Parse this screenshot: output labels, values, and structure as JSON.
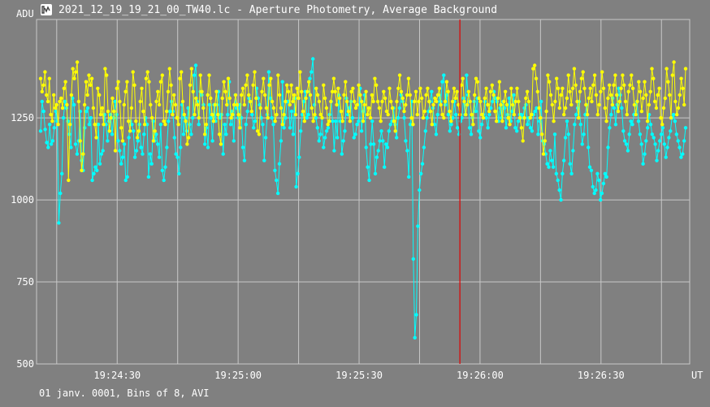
{
  "window": {
    "title": "2021_12_19_19_21_00_TW40.lc - Aperture Photometry, Average Background",
    "icon": "lightcurve-app-icon"
  },
  "footer": {
    "text": "01 janv. 0001, Bins of 8, AVI"
  },
  "colors": {
    "background": "#808080",
    "grid": "#c8c8c8",
    "series_cyan": "#00ffff",
    "series_yellow": "#ffff00",
    "marker_line": "#e00000",
    "text": "#ffffff"
  },
  "chart_data": {
    "type": "line",
    "title": "2021_12_19_19_21_00_TW40.lc - Aperture Photometry, Average Background",
    "xlabel": "UT",
    "ylabel": "ADU",
    "x_unit_label": "UT",
    "y_unit_label": "ADU",
    "xlim": [
      "19:24:10",
      "19:26:52"
    ],
    "ylim": [
      500,
      1550
    ],
    "x_ticks": [
      "19:24:30",
      "19:25:00",
      "19:25:30",
      "19:26:00",
      "19:26:30"
    ],
    "y_ticks": [
      500,
      750,
      1000,
      1250
    ],
    "grid": true,
    "marker_time": "19:25:55",
    "sample_interval_s": 0.3333,
    "series": [
      {
        "color": "#00ffff",
        "values": [
          1210,
          1300,
          1270,
          1215,
          1175,
          1160,
          1230,
          1170,
          1180,
          1220,
          1270,
          1240,
          930,
          1020,
          1080,
          1250,
          1300,
          1280,
          1240,
          1200,
          1160,
          1310,
          1290,
          1170,
          1140,
          1180,
          1270,
          1120,
          1090,
          1220,
          1270,
          1280,
          1230,
          1250,
          1060,
          1080,
          1100,
          1090,
          1230,
          1110,
          1140,
          1150,
          1260,
          1230,
          1180,
          1240,
          1260,
          1200,
          1250,
          1300,
          1260,
          1180,
          1150,
          1110,
          1130,
          1170,
          1060,
          1070,
          1190,
          1240,
          1230,
          1210,
          1130,
          1150,
          1180,
          1230,
          1160,
          1140,
          1200,
          1250,
          1230,
          1070,
          1140,
          1110,
          1240,
          1180,
          1200,
          1170,
          1130,
          1230,
          1090,
          1060,
          1100,
          1160,
          1240,
          1270,
          1300,
          1270,
          1190,
          1140,
          1130,
          1080,
          1160,
          1290,
          1200,
          1250,
          1210,
          1280,
          1230,
          1200,
          1250,
          1380,
          1410,
          1300,
          1230,
          1330,
          1320,
          1290,
          1170,
          1220,
          1160,
          1290,
          1250,
          1180,
          1290,
          1240,
          1290,
          1330,
          1250,
          1260,
          1140,
          1230,
          1200,
          1260,
          1360,
          1230,
          1270,
          1180,
          1320,
          1280,
          1250,
          1290,
          1250,
          1160,
          1120,
          1230,
          1270,
          1310,
          1300,
          1260,
          1220,
          1240,
          1340,
          1310,
          1290,
          1250,
          1230,
          1120,
          1190,
          1260,
          1390,
          1310,
          1250,
          1230,
          1090,
          1060,
          1020,
          1110,
          1180,
          1360,
          1220,
          1250,
          1300,
          1300,
          1220,
          1270,
          1200,
          1310,
          1040,
          1080,
          1130,
          1210,
          1260,
          1300,
          1330,
          1250,
          1260,
          1370,
          1390,
          1430,
          1290,
          1250,
          1220,
          1180,
          1200,
          1250,
          1160,
          1190,
          1210,
          1220,
          1260,
          1300,
          1240,
          1150,
          1240,
          1190,
          1320,
          1240,
          1140,
          1180,
          1210,
          1310,
          1260,
          1280,
          1300,
          1250,
          1190,
          1200,
          1230,
          1240,
          1340,
          1210,
          1270,
          1320,
          1160,
          1100,
          1060,
          1170,
          1240,
          1170,
          1080,
          1130,
          1150,
          1180,
          1210,
          1180,
          1100,
          1170,
          1160,
          1210,
          1230,
          1240,
          1280,
          1230,
          1190,
          1250,
          1280,
          1320,
          1300,
          1250,
          1180,
          1150,
          1070,
          1230,
          1300,
          820,
          580,
          650,
          920,
          1030,
          1080,
          1110,
          1160,
          1210,
          1250,
          1270,
          1300,
          1330,
          1280,
          1230,
          1200,
          1260,
          1320,
          1300,
          1360,
          1380,
          1290,
          1320,
          1260,
          1210,
          1230,
          1250,
          1300,
          1260,
          1220,
          1200,
          1240,
          1250,
          1310,
          1260,
          1380,
          1320,
          1220,
          1200,
          1250,
          1300,
          1270,
          1310,
          1210,
          1190,
          1230,
          1260,
          1300,
          1250,
          1220,
          1260,
          1280,
          1300,
          1330,
          1310,
          1300,
          1240,
          1280,
          1250,
          1300,
          1280,
          1220,
          1260,
          1310,
          1240,
          1270,
          1320,
          1220,
          1210,
          1240,
          1260,
          1260,
          1250,
          1280,
          1290,
          1230,
          1250,
          1220,
          1210,
          1260,
          1270,
          1280,
          1200,
          1240,
          1300,
          1180,
          1170,
          1140,
          1110,
          1100,
          1150,
          1120,
          1100,
          1200,
          1080,
          1060,
          1030,
          1000,
          1080,
          1120,
          1190,
          1240,
          1200,
          1110,
          1080,
          1150,
          1230,
          1260,
          1280,
          1300,
          1230,
          1170,
          1200,
          1260,
          1290,
          1160,
          1100,
          1090,
          1040,
          1020,
          1030,
          1080,
          1060,
          1000,
          1020,
          1050,
          1080,
          1070,
          1160,
          1220,
          1260,
          1310,
          1280,
          1230,
          1290,
          1340,
          1320,
          1280,
          1210,
          1180,
          1170,
          1150,
          1200,
          1240,
          1230,
          1260,
          1290,
          1300,
          1240,
          1200,
          1170,
          1110,
          1140,
          1180,
          1220,
          1260,
          1230,
          1200,
          1190,
          1170,
          1120,
          1150,
          1180,
          1200,
          1220,
          1170,
          1130,
          1160,
          1190,
          1210,
          1250,
          1260,
          1240,
          1200,
          1180,
          1160,
          1130,
          1140,
          1180,
          1220
        ]
      },
      {
        "color": "#ffff00",
        "values": [
          1370,
          1330,
          1350,
          1390,
          1320,
          1300,
          1370,
          1260,
          1240,
          1320,
          1280,
          1290,
          1230,
          1300,
          1310,
          1280,
          1340,
          1360,
          1290,
          1060,
          1230,
          1320,
          1400,
          1370,
          1390,
          1420,
          1300,
          1180,
          1090,
          1140,
          1290,
          1360,
          1320,
          1380,
          1350,
          1370,
          1280,
          1230,
          1190,
          1340,
          1320,
          1260,
          1280,
          1230,
          1400,
          1380,
          1270,
          1210,
          1250,
          1310,
          1270,
          1150,
          1340,
          1360,
          1300,
          1220,
          1180,
          1290,
          1330,
          1360,
          1240,
          1210,
          1280,
          1390,
          1350,
          1240,
          1190,
          1210,
          1300,
          1340,
          1270,
          1230,
          1370,
          1390,
          1360,
          1290,
          1250,
          1180,
          1210,
          1300,
          1330,
          1290,
          1360,
          1380,
          1240,
          1230,
          1270,
          1330,
          1400,
          1350,
          1260,
          1320,
          1290,
          1250,
          1230,
          1370,
          1390,
          1300,
          1260,
          1240,
          1170,
          1190,
          1350,
          1400,
          1330,
          1260,
          1310,
          1290,
          1250,
          1380,
          1330,
          1280,
          1200,
          1230,
          1320,
          1380,
          1310,
          1260,
          1240,
          1290,
          1330,
          1260,
          1200,
          1170,
          1310,
          1360,
          1330,
          1290,
          1370,
          1310,
          1250,
          1260,
          1290,
          1320,
          1290,
          1260,
          1220,
          1320,
          1340,
          1290,
          1350,
          1380,
          1320,
          1300,
          1270,
          1350,
          1390,
          1310,
          1210,
          1200,
          1280,
          1330,
          1370,
          1320,
          1280,
          1250,
          1350,
          1370,
          1300,
          1280,
          1240,
          1260,
          1380,
          1320,
          1280,
          1230,
          1260,
          1300,
          1350,
          1330,
          1290,
          1350,
          1300,
          1320,
          1260,
          1340,
          1310,
          1390,
          1330,
          1270,
          1240,
          1310,
          1330,
          1360,
          1320,
          1280,
          1240,
          1260,
          1340,
          1320,
          1300,
          1260,
          1250,
          1350,
          1310,
          1280,
          1230,
          1240,
          1300,
          1330,
          1370,
          1330,
          1290,
          1340,
          1310,
          1270,
          1240,
          1320,
          1360,
          1300,
          1270,
          1240,
          1330,
          1340,
          1300,
          1280,
          1290,
          1350,
          1320,
          1300,
          1240,
          1290,
          1330,
          1260,
          1280,
          1250,
          1320,
          1300,
          1370,
          1350,
          1300,
          1280,
          1240,
          1300,
          1330,
          1310,
          1270,
          1260,
          1340,
          1300,
          1280,
          1240,
          1210,
          1300,
          1340,
          1380,
          1330,
          1310,
          1270,
          1290,
          1320,
          1370,
          1320,
          1250,
          1230,
          1300,
          1330,
          1260,
          1300,
          1340,
          1310,
          1250,
          1270,
          1320,
          1340,
          1300,
          1270,
          1230,
          1290,
          1310,
          1300,
          1320,
          1340,
          1290,
          1260,
          1250,
          1300,
          1360,
          1330,
          1270,
          1240,
          1300,
          1340,
          1310,
          1330,
          1290,
          1260,
          1350,
          1370,
          1300,
          1260,
          1290,
          1330,
          1300,
          1260,
          1230,
          1320,
          1370,
          1360,
          1310,
          1300,
          1260,
          1250,
          1310,
          1340,
          1290,
          1270,
          1330,
          1350,
          1320,
          1270,
          1240,
          1310,
          1360,
          1290,
          1240,
          1300,
          1330,
          1290,
          1250,
          1230,
          1340,
          1290,
          1260,
          1300,
          1340,
          1300,
          1250,
          1220,
          1180,
          1250,
          1310,
          1330,
          1300,
          1250,
          1260,
          1400,
          1410,
          1370,
          1330,
          1280,
          1250,
          1200,
          1140,
          1180,
          1270,
          1380,
          1360,
          1320,
          1290,
          1240,
          1300,
          1370,
          1340,
          1280,
          1320,
          1340,
          1260,
          1280,
          1310,
          1380,
          1330,
          1290,
          1340,
          1400,
          1350,
          1300,
          1250,
          1330,
          1370,
          1390,
          1340,
          1290,
          1260,
          1310,
          1340,
          1300,
          1350,
          1380,
          1320,
          1260,
          1290,
          1330,
          1390,
          1340,
          1280,
          1240,
          1310,
          1350,
          1320,
          1290,
          1350,
          1380,
          1320,
          1270,
          1300,
          1340,
          1380,
          1350,
          1300,
          1260,
          1330,
          1350,
          1380,
          1340,
          1290,
          1260,
          1300,
          1360,
          1330,
          1270,
          1310,
          1360,
          1320,
          1240,
          1290,
          1330,
          1400,
          1370,
          1300,
          1280,
          1320,
          1340,
          1250,
          1230,
          1280,
          1310,
          1400,
          1360,
          1320,
          1250,
          1380,
          1420,
          1300,
          1260,
          1280,
          1320,
          1370,
          1340,
          1290,
          1400
        ]
      }
    ]
  }
}
